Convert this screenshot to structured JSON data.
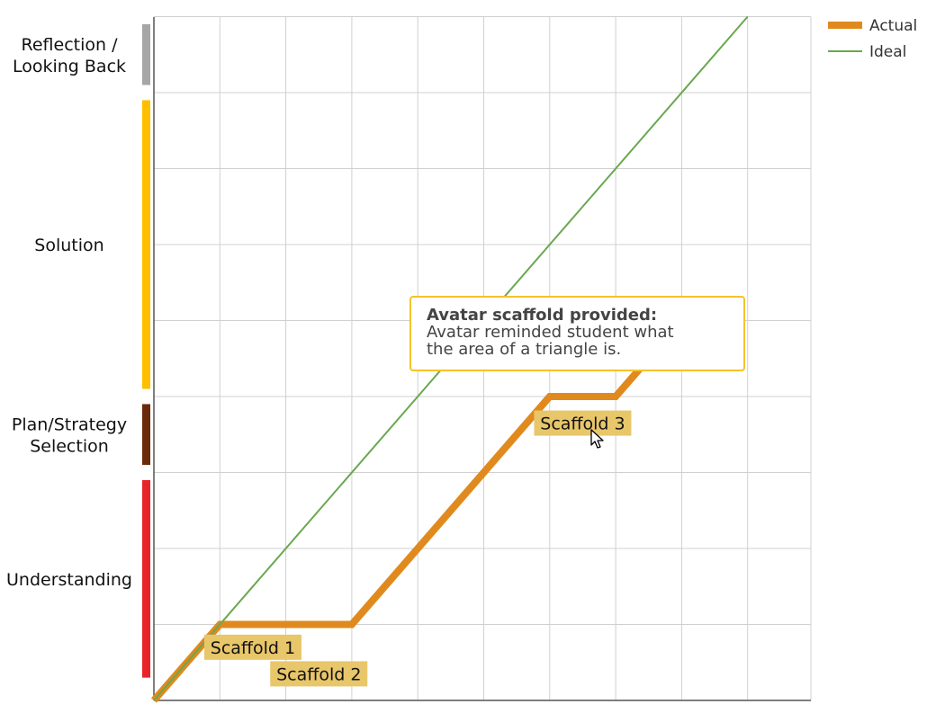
{
  "chart_data": {
    "type": "line",
    "title": "",
    "xlabel": "",
    "ylabel": "",
    "xlim": [
      0,
      10
    ],
    "ylim": [
      0,
      9
    ],
    "x_gridlines": [
      1,
      2,
      3,
      4,
      5,
      6,
      7,
      8,
      9,
      10
    ],
    "y_gridlines": [
      1,
      2,
      3,
      4,
      5,
      6,
      7,
      8,
      9
    ],
    "grid": true,
    "legend_position": "top-right",
    "series": [
      {
        "name": "Actual",
        "color": "#e08a1e",
        "x": [
          0,
          1,
          3,
          6,
          7,
          7.4
        ],
        "y": [
          0,
          1,
          1,
          4,
          4,
          4.4
        ]
      },
      {
        "name": "Ideal",
        "color": "#6aa84f",
        "x": [
          0,
          9
        ],
        "y": [
          0,
          9
        ]
      }
    ],
    "phases": [
      {
        "label": "Understanding",
        "color": "#e8232a",
        "y_from": 0.3,
        "y_to": 2.9
      },
      {
        "label": "Plan/Strategy Selection",
        "color": "#6b2a0a",
        "y_from": 3.1,
        "y_to": 3.9
      },
      {
        "label": "Solution",
        "color": "#ffbf00",
        "y_from": 4.1,
        "y_to": 7.9
      },
      {
        "label": "Reflection / Looking Back",
        "color": "#a6a6a6",
        "y_from": 8.1,
        "y_to": 8.9
      }
    ],
    "annotations": [
      {
        "label": "Scaffold 1",
        "x": 1.5,
        "y": 0.7
      },
      {
        "label": "Scaffold 2",
        "x": 2.5,
        "y": 0.35
      },
      {
        "label": "Scaffold 3",
        "x": 6.5,
        "y": 3.65
      }
    ],
    "annotation_color": "#e8c66a"
  },
  "tooltip": {
    "title": "Avatar scaffold provided:",
    "body": "Avatar reminded student what\nthe area of a triangle is.",
    "border_color": "#f5c22b"
  },
  "cursor": {
    "icon": "arrow-cursor-icon"
  }
}
